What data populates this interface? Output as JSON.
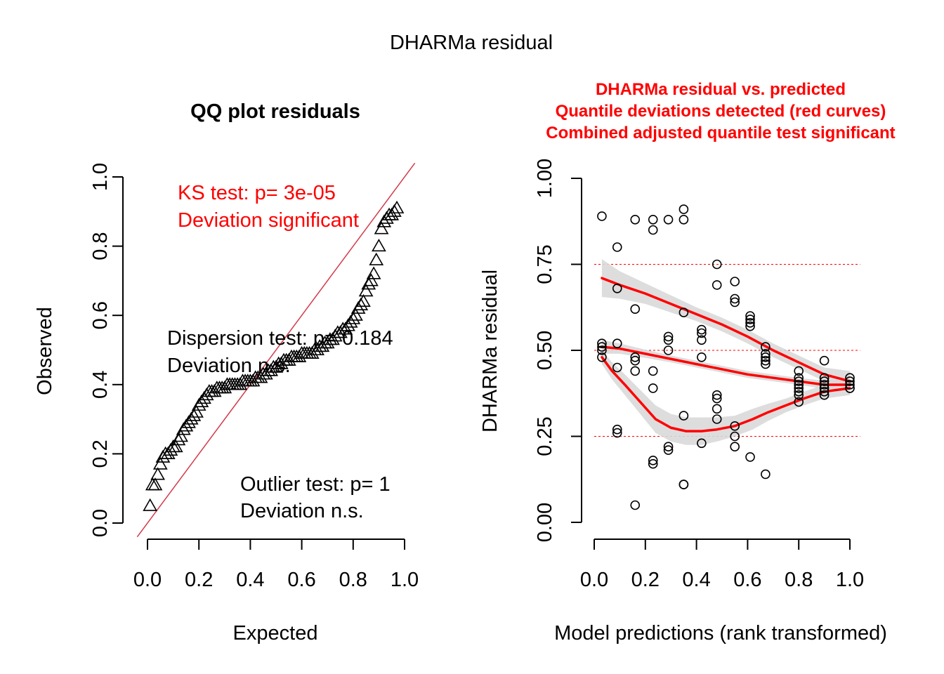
{
  "page_title": "DHARMa residual",
  "colors": {
    "red": "#ff0000",
    "line_red": "#d33a4a",
    "band": "#d9d9d9",
    "black": "#000000"
  },
  "chart_data": [
    {
      "type": "scatter",
      "title": "QQ plot residuals",
      "xlabel": "Expected",
      "ylabel": "Observed",
      "xlim": [
        0,
        1
      ],
      "ylim": [
        0,
        1
      ],
      "xticks": [
        "0.0",
        "0.2",
        "0.4",
        "0.6",
        "0.8",
        "1.0"
      ],
      "yticks": [
        "0.0",
        "0.2",
        "0.4",
        "0.6",
        "0.8",
        "1.0"
      ],
      "marker": "triangle",
      "reference_line": "y = x",
      "annotations": {
        "ks_line1": "KS test: p= 3e-05",
        "ks_line2": "Deviation  significant",
        "disp_line1": "Dispersion test: p= 0.184",
        "disp_line2": "Deviation  n.s.",
        "out_line1": "Outlier test: p= 1",
        "out_line2": "Deviation  n.s."
      },
      "points": [
        [
          0.01,
          0.05
        ],
        [
          0.02,
          0.11
        ],
        [
          0.03,
          0.11
        ],
        [
          0.04,
          0.14
        ],
        [
          0.05,
          0.17
        ],
        [
          0.06,
          0.19
        ],
        [
          0.07,
          0.2
        ],
        [
          0.08,
          0.2
        ],
        [
          0.09,
          0.21
        ],
        [
          0.1,
          0.22
        ],
        [
          0.11,
          0.22
        ],
        [
          0.12,
          0.24
        ],
        [
          0.13,
          0.25
        ],
        [
          0.14,
          0.27
        ],
        [
          0.15,
          0.28
        ],
        [
          0.16,
          0.29
        ],
        [
          0.17,
          0.3
        ],
        [
          0.18,
          0.31
        ],
        [
          0.19,
          0.32
        ],
        [
          0.2,
          0.34
        ],
        [
          0.21,
          0.35
        ],
        [
          0.22,
          0.36
        ],
        [
          0.23,
          0.37
        ],
        [
          0.24,
          0.38
        ],
        [
          0.25,
          0.38
        ],
        [
          0.26,
          0.38
        ],
        [
          0.27,
          0.39
        ],
        [
          0.28,
          0.39
        ],
        [
          0.29,
          0.39
        ],
        [
          0.3,
          0.39
        ],
        [
          0.31,
          0.4
        ],
        [
          0.32,
          0.4
        ],
        [
          0.33,
          0.4
        ],
        [
          0.34,
          0.4
        ],
        [
          0.35,
          0.4
        ],
        [
          0.36,
          0.4
        ],
        [
          0.37,
          0.41
        ],
        [
          0.38,
          0.41
        ],
        [
          0.39,
          0.41
        ],
        [
          0.4,
          0.41
        ],
        [
          0.41,
          0.41
        ],
        [
          0.42,
          0.42
        ],
        [
          0.43,
          0.42
        ],
        [
          0.44,
          0.42
        ],
        [
          0.45,
          0.43
        ],
        [
          0.46,
          0.43
        ],
        [
          0.47,
          0.44
        ],
        [
          0.48,
          0.44
        ],
        [
          0.49,
          0.45
        ],
        [
          0.5,
          0.45
        ],
        [
          0.51,
          0.46
        ],
        [
          0.52,
          0.46
        ],
        [
          0.53,
          0.47
        ],
        [
          0.54,
          0.47
        ],
        [
          0.55,
          0.47
        ],
        [
          0.56,
          0.48
        ],
        [
          0.57,
          0.48
        ],
        [
          0.58,
          0.48
        ],
        [
          0.59,
          0.48
        ],
        [
          0.6,
          0.49
        ],
        [
          0.61,
          0.49
        ],
        [
          0.62,
          0.49
        ],
        [
          0.63,
          0.49
        ],
        [
          0.64,
          0.49
        ],
        [
          0.65,
          0.5
        ],
        [
          0.66,
          0.5
        ],
        [
          0.67,
          0.51
        ],
        [
          0.68,
          0.51
        ],
        [
          0.69,
          0.52
        ],
        [
          0.7,
          0.52
        ],
        [
          0.71,
          0.53
        ],
        [
          0.72,
          0.53
        ],
        [
          0.73,
          0.54
        ],
        [
          0.74,
          0.55
        ],
        [
          0.75,
          0.55
        ],
        [
          0.76,
          0.56
        ],
        [
          0.77,
          0.56
        ],
        [
          0.78,
          0.57
        ],
        [
          0.79,
          0.58
        ],
        [
          0.8,
          0.59
        ],
        [
          0.81,
          0.6
        ],
        [
          0.82,
          0.62
        ],
        [
          0.83,
          0.63
        ],
        [
          0.84,
          0.64
        ],
        [
          0.85,
          0.67
        ],
        [
          0.86,
          0.69
        ],
        [
          0.87,
          0.7
        ],
        [
          0.88,
          0.72
        ],
        [
          0.89,
          0.76
        ],
        [
          0.9,
          0.8
        ],
        [
          0.91,
          0.85
        ],
        [
          0.92,
          0.87
        ],
        [
          0.93,
          0.88
        ],
        [
          0.94,
          0.89
        ],
        [
          0.95,
          0.89
        ],
        [
          0.96,
          0.9
        ],
        [
          0.97,
          0.91
        ]
      ]
    },
    {
      "type": "scatter",
      "title_lines": [
        "DHARMa residual vs. predicted",
        "Quantile deviations detected (red curves)",
        "Combined adjusted quantile test significant"
      ],
      "xlabel": "Model predictions (rank transformed)",
      "ylabel": "DHARMa residual",
      "xlim": [
        0,
        1
      ],
      "ylim": [
        0,
        1
      ],
      "xticks": [
        "0.0",
        "0.2",
        "0.4",
        "0.6",
        "0.8",
        "1.0"
      ],
      "yticks": [
        "0.00",
        "0.25",
        "0.50",
        "0.75",
        "1.00"
      ],
      "reference_lines": [
        0.25,
        0.5,
        0.75
      ],
      "marker": "circle",
      "points": [
        [
          0.03,
          0.89
        ],
        [
          0.03,
          0.52
        ],
        [
          0.03,
          0.51
        ],
        [
          0.03,
          0.5
        ],
        [
          0.03,
          0.48
        ],
        [
          0.09,
          0.8
        ],
        [
          0.09,
          0.68
        ],
        [
          0.09,
          0.52
        ],
        [
          0.09,
          0.45
        ],
        [
          0.09,
          0.27
        ],
        [
          0.09,
          0.26
        ],
        [
          0.16,
          0.88
        ],
        [
          0.16,
          0.62
        ],
        [
          0.16,
          0.48
        ],
        [
          0.16,
          0.47
        ],
        [
          0.16,
          0.44
        ],
        [
          0.16,
          0.05
        ],
        [
          0.23,
          0.88
        ],
        [
          0.23,
          0.85
        ],
        [
          0.23,
          0.44
        ],
        [
          0.23,
          0.39
        ],
        [
          0.23,
          0.18
        ],
        [
          0.23,
          0.17
        ],
        [
          0.29,
          0.88
        ],
        [
          0.29,
          0.54
        ],
        [
          0.29,
          0.53
        ],
        [
          0.29,
          0.5
        ],
        [
          0.29,
          0.22
        ],
        [
          0.29,
          0.21
        ],
        [
          0.35,
          0.91
        ],
        [
          0.35,
          0.88
        ],
        [
          0.35,
          0.61
        ],
        [
          0.35,
          0.31
        ],
        [
          0.35,
          0.11
        ],
        [
          0.35,
          0.11
        ],
        [
          0.42,
          0.56
        ],
        [
          0.42,
          0.55
        ],
        [
          0.42,
          0.53
        ],
        [
          0.42,
          0.48
        ],
        [
          0.42,
          0.23
        ],
        [
          0.48,
          0.75
        ],
        [
          0.48,
          0.69
        ],
        [
          0.48,
          0.37
        ],
        [
          0.48,
          0.36
        ],
        [
          0.48,
          0.33
        ],
        [
          0.48,
          0.3
        ],
        [
          0.55,
          0.7
        ],
        [
          0.55,
          0.65
        ],
        [
          0.55,
          0.64
        ],
        [
          0.55,
          0.28
        ],
        [
          0.55,
          0.25
        ],
        [
          0.55,
          0.22
        ],
        [
          0.61,
          0.6
        ],
        [
          0.61,
          0.59
        ],
        [
          0.61,
          0.58
        ],
        [
          0.61,
          0.57
        ],
        [
          0.61,
          0.19
        ],
        [
          0.67,
          0.51
        ],
        [
          0.67,
          0.49
        ],
        [
          0.67,
          0.48
        ],
        [
          0.67,
          0.47
        ],
        [
          0.67,
          0.46
        ],
        [
          0.67,
          0.14
        ],
        [
          0.8,
          0.44
        ],
        [
          0.8,
          0.42
        ],
        [
          0.8,
          0.41
        ],
        [
          0.8,
          0.4
        ],
        [
          0.8,
          0.39
        ],
        [
          0.8,
          0.38
        ],
        [
          0.8,
          0.37
        ],
        [
          0.8,
          0.35
        ],
        [
          0.9,
          0.47
        ],
        [
          0.9,
          0.42
        ],
        [
          0.9,
          0.41
        ],
        [
          0.9,
          0.4
        ],
        [
          0.9,
          0.39
        ],
        [
          0.9,
          0.38
        ],
        [
          0.9,
          0.37
        ],
        [
          1.0,
          0.42
        ],
        [
          1.0,
          0.41
        ],
        [
          1.0,
          0.4
        ],
        [
          1.0,
          0.39
        ],
        [
          1.0,
          0.39
        ]
      ],
      "quantile_curves": [
        {
          "quantile": 0.75,
          "x": [
            0.03,
            0.1,
            0.2,
            0.3,
            0.4,
            0.5,
            0.6,
            0.7,
            0.8,
            0.9,
            1.0
          ],
          "y": [
            0.71,
            0.69,
            0.665,
            0.635,
            0.605,
            0.575,
            0.54,
            0.5,
            0.465,
            0.43,
            0.41
          ],
          "band_half_width": [
            0.055,
            0.04,
            0.03,
            0.025,
            0.02,
            0.02,
            0.02,
            0.02,
            0.02,
            0.02,
            0.03
          ]
        },
        {
          "quantile": 0.5,
          "x": [
            0.03,
            0.1,
            0.2,
            0.3,
            0.4,
            0.5,
            0.6,
            0.7,
            0.8,
            0.9,
            1.0
          ],
          "y": [
            0.51,
            0.505,
            0.49,
            0.475,
            0.46,
            0.445,
            0.43,
            0.42,
            0.41,
            0.4,
            0.4
          ],
          "band_half_width": [
            0.02,
            0.015,
            0.012,
            0.01,
            0.01,
            0.01,
            0.01,
            0.01,
            0.01,
            0.012,
            0.015
          ]
        },
        {
          "quantile": 0.25,
          "x": [
            0.03,
            0.07,
            0.12,
            0.18,
            0.24,
            0.3,
            0.36,
            0.42,
            0.48,
            0.55,
            0.62,
            0.68,
            0.75,
            0.82,
            0.9,
            1.0
          ],
          "y": [
            0.48,
            0.44,
            0.4,
            0.35,
            0.3,
            0.275,
            0.265,
            0.265,
            0.27,
            0.28,
            0.3,
            0.32,
            0.34,
            0.36,
            0.38,
            0.39
          ],
          "band_half_width": [
            0.02,
            0.025,
            0.03,
            0.035,
            0.04,
            0.04,
            0.04,
            0.04,
            0.035,
            0.03,
            0.03,
            0.025,
            0.02,
            0.02,
            0.02,
            0.02
          ]
        }
      ]
    }
  ]
}
